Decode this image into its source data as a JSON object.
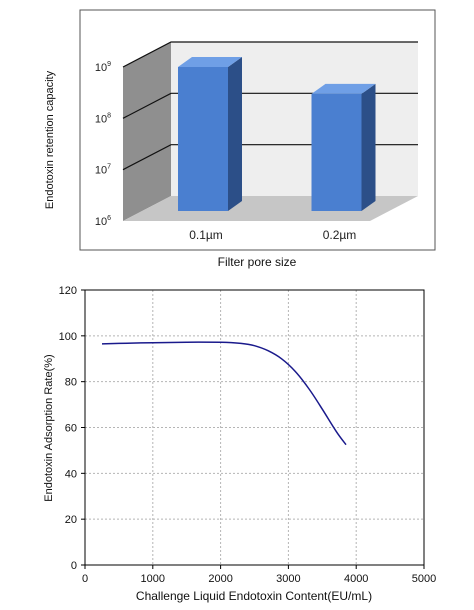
{
  "chart_data": [
    {
      "type": "bar",
      "style": "3d",
      "categories": [
        "0.1µm",
        "0.2µm"
      ],
      "values": [
        1000000000,
        300000000
      ],
      "xlabel": "Filter pore size",
      "ylabel": "Endotoxin retention capacity",
      "yscale": "log",
      "ylim": [
        1000000,
        1000000000
      ],
      "ytick_labels": [
        {
          "base": "10",
          "exp": "9",
          "value": 1000000000
        },
        {
          "base": "10",
          "exp": "8",
          "value": 100000000
        },
        {
          "base": "10",
          "exp": "7",
          "value": 10000000
        },
        {
          "base": "10",
          "exp": "6",
          "value": 1000000
        }
      ],
      "grid": true,
      "colors": {
        "bar_front": "#4a7fd0",
        "bar_side": "#2c4f88",
        "bar_top": "#6f9fe6",
        "wall": "#eeeeee",
        "side_wall": "#8f8f8f",
        "floor": "#c6c6c6"
      }
    },
    {
      "type": "line",
      "x": [
        250,
        500,
        1000,
        1500,
        2000,
        2300,
        2500,
        2700,
        2900,
        3100,
        3300,
        3500,
        3700,
        3850
      ],
      "y": [
        96.5,
        96.7,
        97,
        97.2,
        97.2,
        96.7,
        95.7,
        93.5,
        90,
        84.5,
        77,
        68,
        58.5,
        52.5
      ],
      "xlabel": "Challenge Liquid Endotoxin Content(EU/mL)",
      "ylabel": "Endotoxin Adsorption Rate(%)",
      "xlim": [
        0,
        5000
      ],
      "ylim": [
        0,
        120
      ],
      "xticks": [
        0,
        1000,
        2000,
        3000,
        4000,
        5000
      ],
      "yticks": [
        0,
        20,
        40,
        60,
        80,
        100,
        120
      ],
      "grid": true,
      "line_color": "#1a1a8c"
    }
  ]
}
